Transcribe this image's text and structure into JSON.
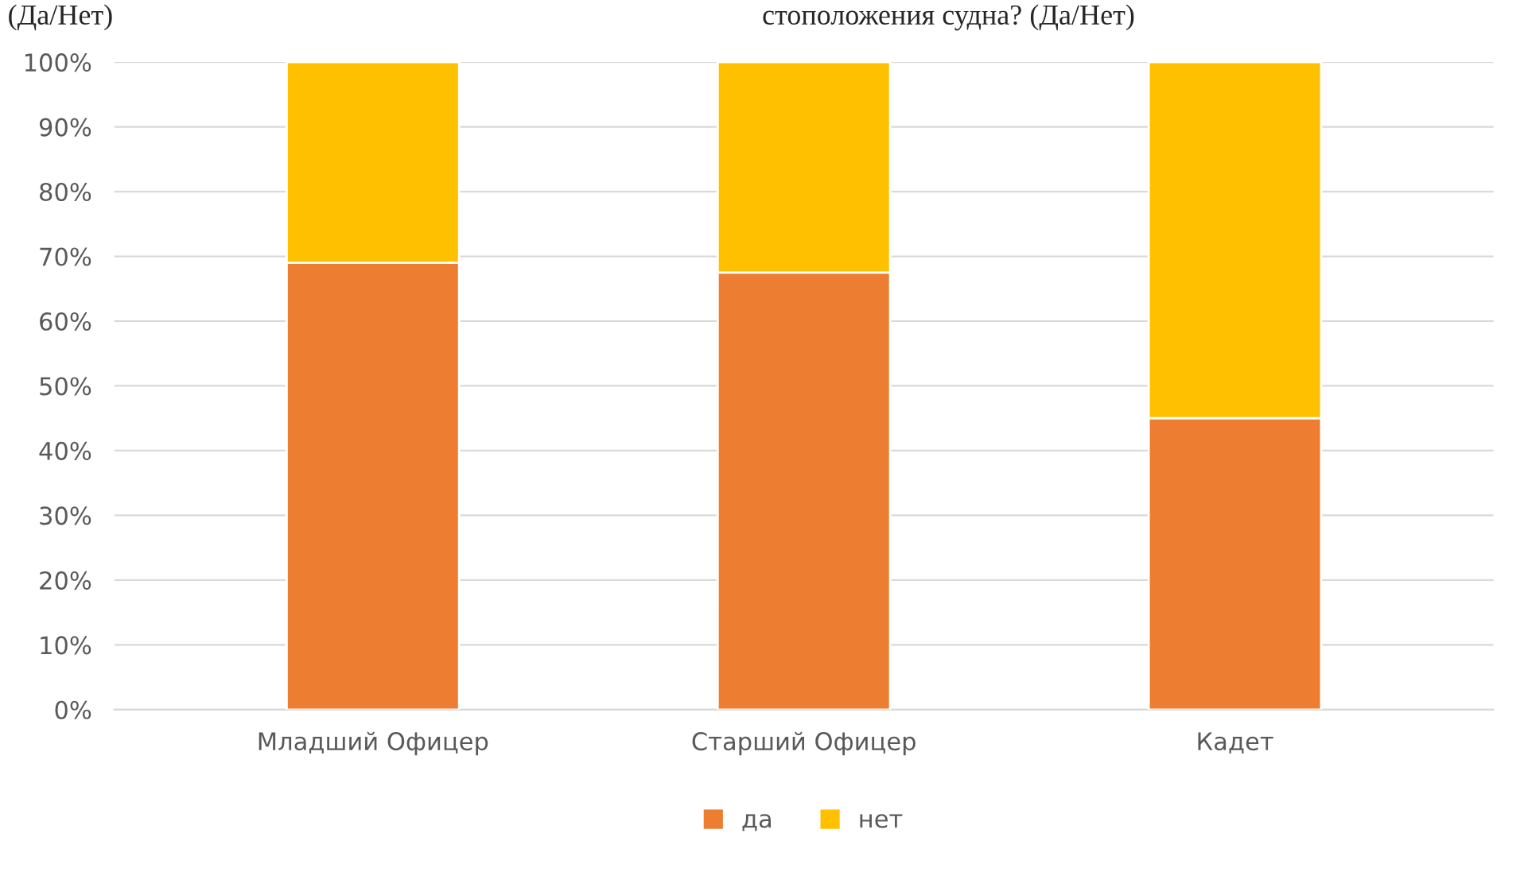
{
  "chart_data": {
    "type": "bar",
    "stacked": true,
    "categories": [
      "Младший Офицер",
      "Старший Офицер",
      "Кадет"
    ],
    "series": [
      {
        "name": "да",
        "color": "#ed7d31",
        "values": [
          69,
          67.5,
          45
        ]
      },
      {
        "name": "нет",
        "color": "#ffc000",
        "values": [
          31,
          32.5,
          55
        ]
      }
    ],
    "ylim": [
      0,
      100
    ],
    "yticks": [
      {
        "value": 0,
        "label": "0%"
      },
      {
        "value": 10,
        "label": "10%"
      },
      {
        "value": 20,
        "label": "20%"
      },
      {
        "value": 30,
        "label": "30%"
      },
      {
        "value": 40,
        "label": "40%"
      },
      {
        "value": 50,
        "label": "50%"
      },
      {
        "value": 60,
        "label": "60%"
      },
      {
        "value": 70,
        "label": "70%"
      },
      {
        "value": 80,
        "label": "80%"
      },
      {
        "value": 90,
        "label": "90%"
      },
      {
        "value": 100,
        "label": "100%"
      }
    ],
    "grid": "y",
    "legend": "bottom",
    "annotations": [
      "(Да/Нет)",
      "стоположения судна? (Да/Нет)"
    ]
  }
}
